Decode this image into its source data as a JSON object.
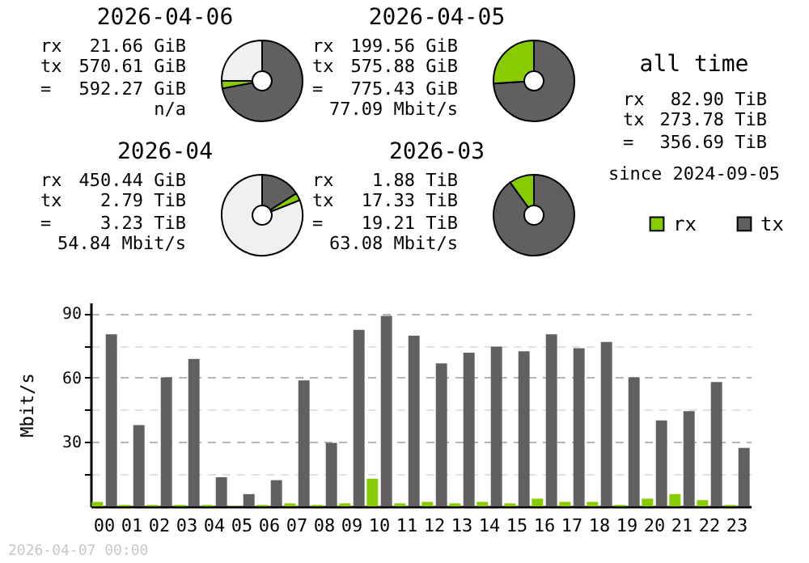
{
  "chart_data": [
    {
      "type": "donut",
      "title": "2026-04-06",
      "categories": [
        null,
        null,
        null
      ],
      "values": [
        72,
        3,
        25
      ],
      "colors": [
        "#606060",
        "#88cc00",
        "#f0f0f0"
      ],
      "annotations": [
        "rx 21.66 GiB",
        "tx 570.61 GiB",
        "= 592.27 GiB",
        "n/a"
      ]
    },
    {
      "type": "donut",
      "title": "2026-04-05",
      "categories": [
        null,
        null
      ],
      "values": [
        74,
        26
      ],
      "colors": [
        "#606060",
        "#88cc00"
      ],
      "annotations": [
        "rx 199.56 GiB",
        "tx 575.88 GiB",
        "= 775.43 GiB",
        "77.09 Mbit/s"
      ]
    },
    {
      "type": "donut",
      "title": "2026-04",
      "categories": [
        null,
        null,
        null
      ],
      "values": [
        16,
        3,
        81
      ],
      "colors": [
        "#606060",
        "#88cc00",
        "#f0f0f0"
      ],
      "annotations": [
        "rx 450.44 GiB",
        "tx 2.79 TiB",
        "= 3.23 TiB",
        "54.84 Mbit/s"
      ]
    },
    {
      "type": "donut",
      "title": "2026-03",
      "categories": [
        null,
        null
      ],
      "values": [
        90,
        10
      ],
      "colors": [
        "#606060",
        "#88cc00"
      ],
      "annotations": [
        "rx 1.88 TiB",
        "tx 17.33 TiB",
        "= 19.21 TiB",
        "63.08 Mbit/s"
      ]
    },
    {
      "type": "other",
      "title": "all time",
      "annotations": [
        "rx 82.90 TiB",
        "tx 273.78 TiB",
        "= 356.69 TiB",
        "since 2024-09-05"
      ]
    },
    {
      "type": "bar",
      "ylabel": "Mbit/s",
      "categories": [
        "00",
        "01",
        "02",
        "03",
        "04",
        "05",
        "06",
        "07",
        "08",
        "09",
        "10",
        "11",
        "12",
        "13",
        "14",
        "15",
        "16",
        "17",
        "18",
        "19",
        "20",
        "21",
        "22",
        "23"
      ],
      "series": [
        {
          "name": "rx",
          "color": "#88cc00",
          "values": [
            2.1,
            0.7,
            0.7,
            0.7,
            0.7,
            0.2,
            0.7,
            1.4,
            0.7,
            1.4,
            12.9,
            1.4,
            2.1,
            1.4,
            2.1,
            1.4,
            3.6,
            2.1,
            2.1,
            0.7,
            3.6,
            5.7,
            2.9,
            0.7
          ]
        },
        {
          "name": "tx",
          "color": "#606060",
          "values": [
            80.2,
            37.9,
            60.1,
            68.7,
            13.6,
            5.7,
            12.2,
            58.7,
            29.6,
            82.3,
            88.8,
            79.5,
            66.6,
            71.6,
            74.5,
            72.3,
            80.2,
            73.7,
            76.6,
            60.1,
            40.1,
            44.4,
            58,
            27.2
          ]
        }
      ],
      "ylim": [
        0,
        95
      ],
      "yticks": [
        {
          "value": 15,
          "label": null
        },
        30,
        {
          "value": 45,
          "label": null
        },
        60,
        {
          "value": 75,
          "label": null
        },
        90
      ],
      "grid": "y",
      "legend": "top right",
      "annotations": [
        "2026-04-07 00:00"
      ]
    }
  ]
}
